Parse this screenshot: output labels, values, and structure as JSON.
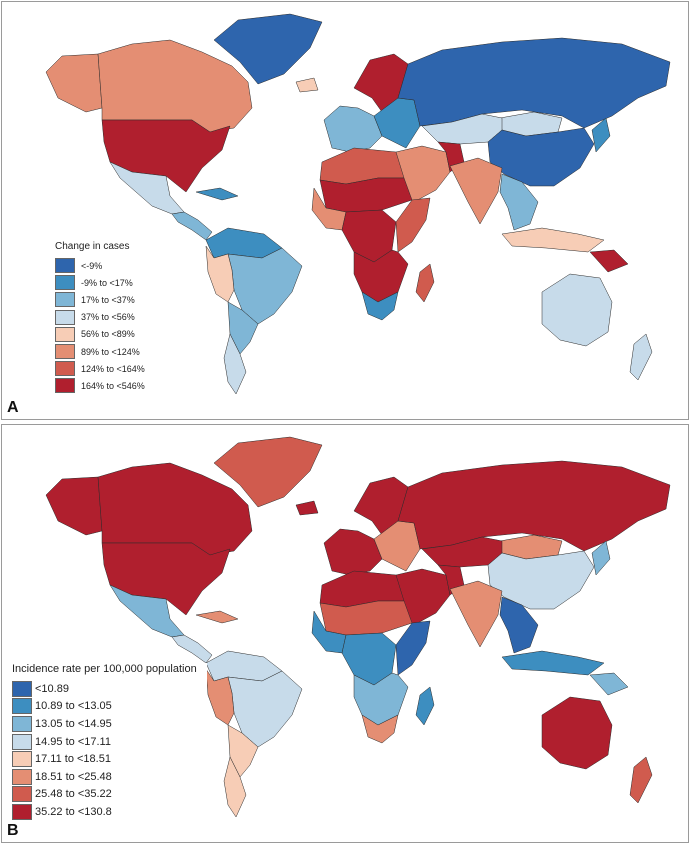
{
  "palette": [
    "#2e65ad",
    "#3d8ec0",
    "#7fb6d6",
    "#c7dbea",
    "#f7cdb6",
    "#e48e73",
    "#d05b4e",
    "#b01f2e"
  ],
  "panel_a": {
    "letter": "A",
    "legend_title": "Change in cases",
    "legend": [
      {
        "label": "<-9%",
        "color": "#2e65ad"
      },
      {
        "label": "-9% to <17%",
        "color": "#3d8ec0"
      },
      {
        "label": "17% to <37%",
        "color": "#7fb6d6"
      },
      {
        "label": "37% to <56%",
        "color": "#c7dbea"
      },
      {
        "label": "56% to <89%",
        "color": "#f7cdb6"
      },
      {
        "label": "89% to <124%",
        "color": "#e48e73"
      },
      {
        "label": "124% to <164%",
        "color": "#d05b4e"
      },
      {
        "label": "164% to <546%",
        "color": "#b01f2e"
      }
    ],
    "regions": {
      "greenland": 0,
      "alaska": 5,
      "canada": 5,
      "usa": 7,
      "mexico": 3,
      "central_america": 2,
      "caribbean": 1,
      "south_america_north": 1,
      "brazil": 2,
      "andes": 4,
      "southern_cone": 2,
      "patagonia": 3,
      "iceland": 4,
      "scandinavia": 7,
      "western_europe": 2,
      "eastern_europe": 1,
      "russia": 0,
      "mongolia": 3,
      "kazakhstan": 3,
      "china": 0,
      "japan": 1,
      "middle_east": 5,
      "afghanistan": 7,
      "india": 5,
      "southeast_asia": 2,
      "indonesia": 4,
      "png": 7,
      "north_africa": 6,
      "sahel": 7,
      "west_africa": 5,
      "central_africa": 7,
      "east_africa": 6,
      "southern_africa": 7,
      "south_africa": 1,
      "madagascar": 6,
      "australia": 3,
      "new_zealand": 3
    }
  },
  "panel_b": {
    "letter": "B",
    "legend_title": "Incidence rate per 100,000 population",
    "legend": [
      {
        "label": "<10.89",
        "color": "#2e65ad"
      },
      {
        "label": "10.89 to <13.05",
        "color": "#3d8ec0"
      },
      {
        "label": "13.05 to <14.95",
        "color": "#7fb6d6"
      },
      {
        "label": "14.95 to <17.11",
        "color": "#c7dbea"
      },
      {
        "label": "17.11 to <18.51",
        "color": "#f7cdb6"
      },
      {
        "label": "18.51 to <25.48",
        "color": "#e48e73"
      },
      {
        "label": "25.48 to <35.22",
        "color": "#d05b4e"
      },
      {
        "label": "35.22 to <130.8",
        "color": "#b01f2e"
      }
    ],
    "regions": {
      "greenland": 6,
      "alaska": 7,
      "canada": 7,
      "usa": 7,
      "mexico": 2,
      "central_america": 3,
      "caribbean": 5,
      "south_america_north": 3,
      "brazil": 3,
      "andes": 5,
      "southern_cone": 4,
      "patagonia": 4,
      "iceland": 7,
      "scandinavia": 7,
      "western_europe": 7,
      "eastern_europe": 5,
      "russia": 7,
      "mongolia": 5,
      "kazakhstan": 7,
      "china": 3,
      "japan": 2,
      "middle_east": 7,
      "afghanistan": 7,
      "india": 5,
      "southeast_asia": 0,
      "indonesia": 1,
      "png": 2,
      "north_africa": 7,
      "sahel": 6,
      "west_africa": 1,
      "central_africa": 1,
      "east_africa": 0,
      "southern_africa": 2,
      "south_africa": 5,
      "madagascar": 1,
      "australia": 7,
      "new_zealand": 6
    }
  }
}
